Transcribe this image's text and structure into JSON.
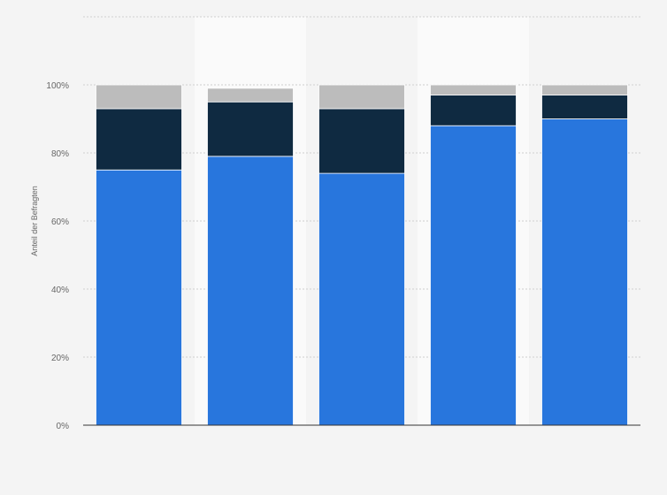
{
  "chart_data": {
    "type": "bar",
    "stacked": true,
    "categories": [
      "",
      "",
      "",
      "",
      ""
    ],
    "series": [
      {
        "values": [
          75,
          79,
          74,
          88,
          90
        ]
      },
      {
        "values": [
          18,
          16,
          19,
          9,
          7
        ]
      },
      {
        "values": [
          7,
          4,
          7,
          3,
          3
        ]
      }
    ],
    "colors": [
      "#2876dd",
      "#0f2a41",
      "#bcbcbc"
    ],
    "ylabel": "Anteil der Befragten",
    "ylim": [
      0,
      120
    ],
    "yticks": [
      0,
      20,
      40,
      60,
      80,
      100
    ],
    "ytick_labels": [
      "0%",
      "20%",
      "40%",
      "60%",
      "80%",
      "100%"
    ],
    "grid": true,
    "legend": "none"
  }
}
